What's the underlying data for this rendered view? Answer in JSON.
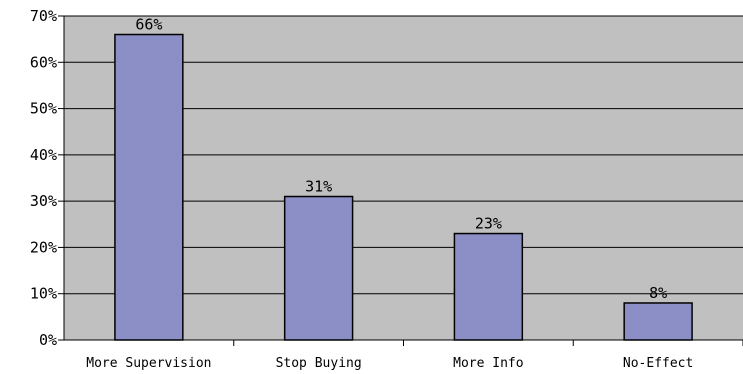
{
  "chart_data": {
    "type": "bar",
    "categories": [
      "More Supervision",
      "Stop Buying",
      "More Info",
      "No-Effect"
    ],
    "values": [
      66,
      31,
      23,
      8
    ],
    "data_labels": [
      "66%",
      "31%",
      "23%",
      "8%"
    ],
    "ylim": [
      0,
      70
    ],
    "y_ticks": [
      0,
      10,
      20,
      30,
      40,
      50,
      60,
      70
    ],
    "y_tick_labels": [
      "0%",
      "10%",
      "20%",
      "30%",
      "40%",
      "50%",
      "60%",
      "70%"
    ],
    "grid": true,
    "legend": "none",
    "colors": {
      "plot_background": "#c0c0c0",
      "bar_fill": "#8c8fc6",
      "bar_stroke": "#000000",
      "grid": "#000000",
      "axis": "#000000"
    }
  }
}
